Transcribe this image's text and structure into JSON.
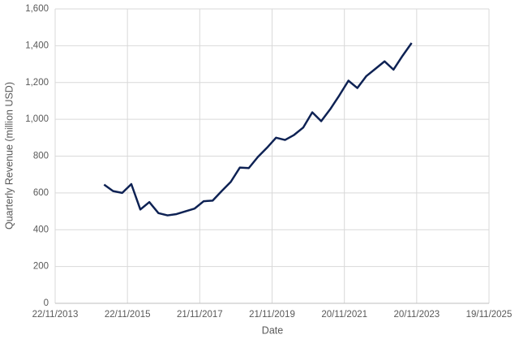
{
  "chart_data": {
    "type": "line",
    "x_label": "Date",
    "y_label": "Quarterly Revenue (million USD)",
    "x": [
      "2015-03-31",
      "2015-06-30",
      "2015-09-30",
      "2015-12-31",
      "2016-03-31",
      "2016-06-30",
      "2016-09-30",
      "2016-12-31",
      "2017-03-31",
      "2017-06-30",
      "2017-09-30",
      "2017-12-31",
      "2018-03-31",
      "2018-06-30",
      "2018-09-30",
      "2018-12-31",
      "2019-03-31",
      "2019-06-30",
      "2019-09-30",
      "2019-12-31",
      "2020-03-31",
      "2020-06-30",
      "2020-09-30",
      "2020-12-31",
      "2021-03-31",
      "2021-06-30",
      "2021-09-30",
      "2021-12-31",
      "2022-03-31",
      "2022-06-30",
      "2022-09-30",
      "2022-12-31",
      "2023-03-31",
      "2023-06-30",
      "2023-09-30"
    ],
    "series": [
      {
        "name": "Quarterly Revenue",
        "color": "#0e2254",
        "values": [
          645,
          610,
          600,
          648,
          510,
          550,
          490,
          478,
          485,
          500,
          515,
          555,
          558,
          610,
          660,
          738,
          735,
          795,
          845,
          900,
          888,
          915,
          955,
          1038,
          990,
          1055,
          1130,
          1210,
          1170,
          1235,
          1275,
          1315,
          1270,
          1345,
          1415
        ]
      }
    ],
    "xlim": [
      "2013-11-22",
      "2025-11-19"
    ],
    "xticks": [
      {
        "value": "2013-11-22",
        "label": "22/11/2013"
      },
      {
        "value": "2015-11-22",
        "label": "22/11/2015"
      },
      {
        "value": "2017-11-21",
        "label": "21/11/2017"
      },
      {
        "value": "2019-11-21",
        "label": "21/11/2019"
      },
      {
        "value": "2021-11-20",
        "label": "20/11/2021"
      },
      {
        "value": "2023-11-20",
        "label": "20/11/2023"
      },
      {
        "value": "2025-11-19",
        "label": "19/11/2025"
      }
    ],
    "ylim": [
      0,
      1600
    ],
    "yticks": [
      0,
      200,
      400,
      600,
      800,
      {
        "value": 1000,
        "label": "1,000"
      },
      {
        "value": 1200,
        "label": "1,200"
      },
      {
        "value": 1400,
        "label": "1,400"
      },
      {
        "value": 1600,
        "label": "1,600"
      }
    ],
    "grid": true
  }
}
